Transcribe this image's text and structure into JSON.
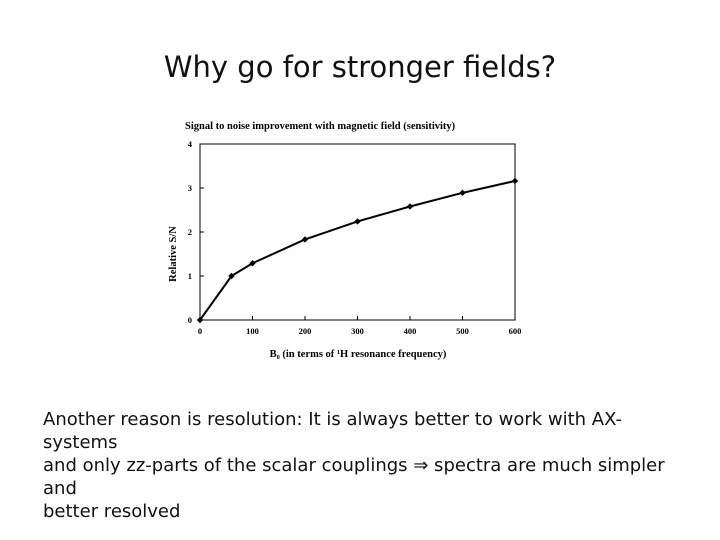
{
  "slide": {
    "title": "Why go for stronger fields?",
    "body_lines": [
      "Another reason is resolution: It is always better to work with AX-systems",
      "and only zz-parts of the scalar couplings ⇒ spectra are much simpler and",
      "better resolved"
    ]
  },
  "chart_data": {
    "type": "line",
    "title": "Signal to noise improvement with magnetic field (sensitivity)",
    "xlabel": "B₀ (in terms of ¹H resonance frequency)",
    "ylabel": "Relative S/N",
    "x": [
      0,
      60,
      100,
      200,
      300,
      400,
      500,
      600
    ],
    "series": [
      {
        "values": [
          0,
          1.0,
          1.29,
          1.83,
          2.24,
          2.58,
          2.89,
          3.16
        ]
      }
    ],
    "xticks": [
      "0",
      "100",
      "200",
      "300",
      "400",
      "500",
      "600"
    ],
    "yticks": [
      "0",
      "1",
      "2",
      "3",
      "4"
    ],
    "xlim": [
      0,
      600
    ],
    "ylim": [
      0,
      4
    ],
    "grid": false,
    "marker": "diamond",
    "color": "#000000"
  }
}
